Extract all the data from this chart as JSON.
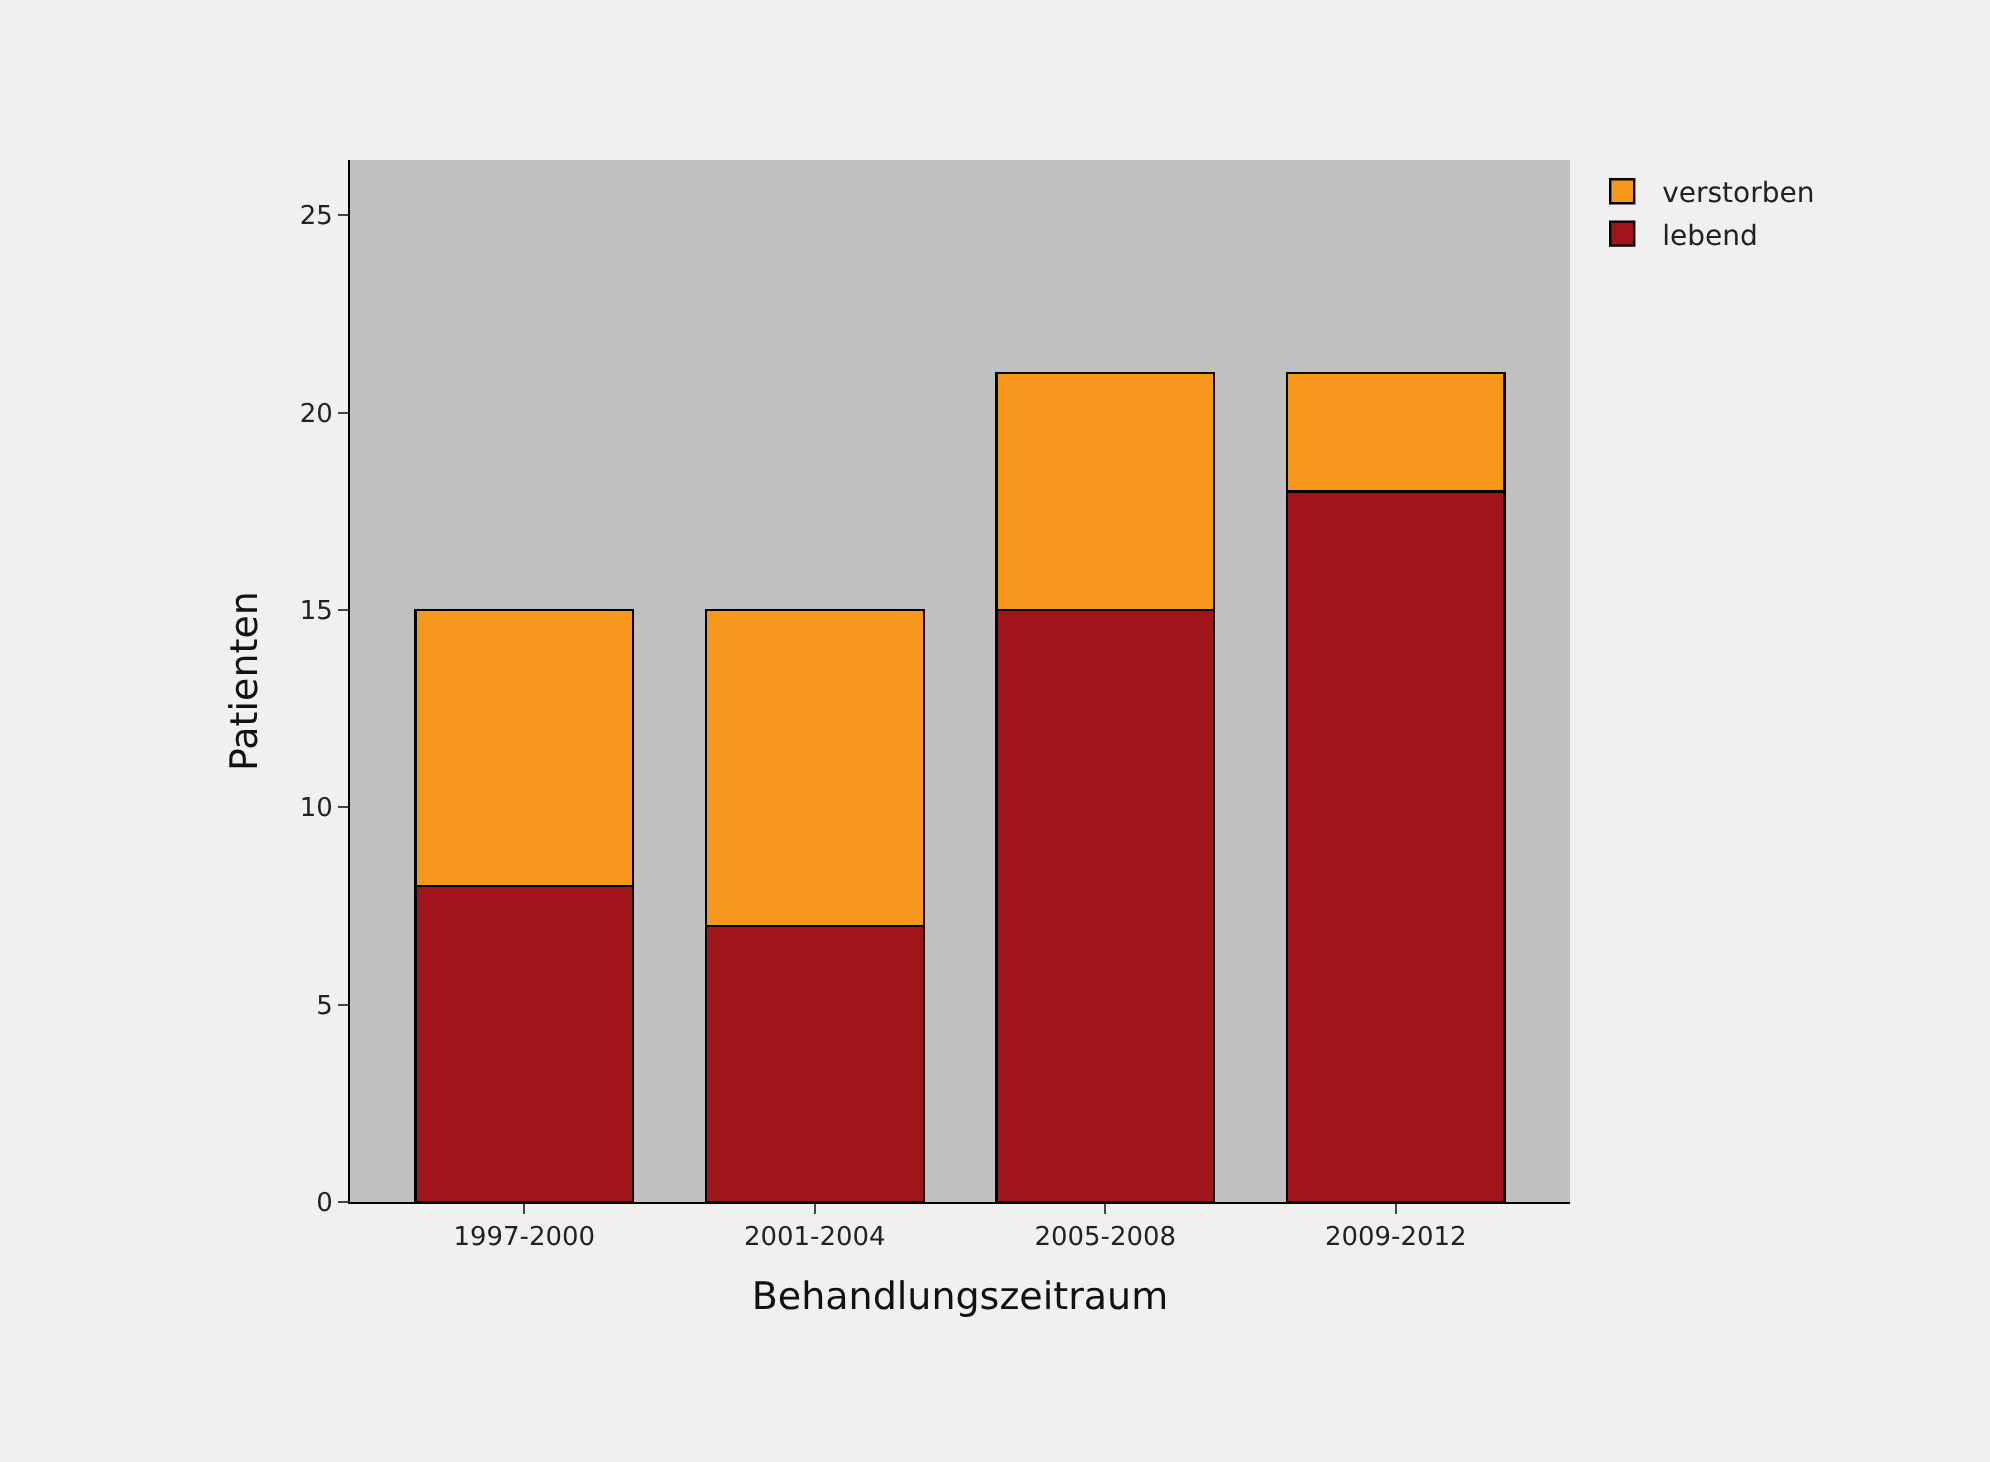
{
  "chart_data": {
    "type": "bar",
    "stacked": true,
    "xlabel": "Behandlungszeitraum",
    "ylabel": "Patienten",
    "categories": [
      "1997-2000",
      "2001-2004",
      "2005-2008",
      "2009-2012"
    ],
    "series": [
      {
        "name": "lebend",
        "color": "#a0151a",
        "values": [
          8,
          7,
          15,
          18
        ]
      },
      {
        "name": "verstorben",
        "color": "#f7981d",
        "values": [
          7,
          8,
          6,
          3
        ]
      }
    ],
    "ylim": [
      0,
      26.4
    ],
    "yticks": [
      0,
      5,
      10,
      15,
      20,
      25
    ],
    "grid": false,
    "legend": "top right"
  }
}
